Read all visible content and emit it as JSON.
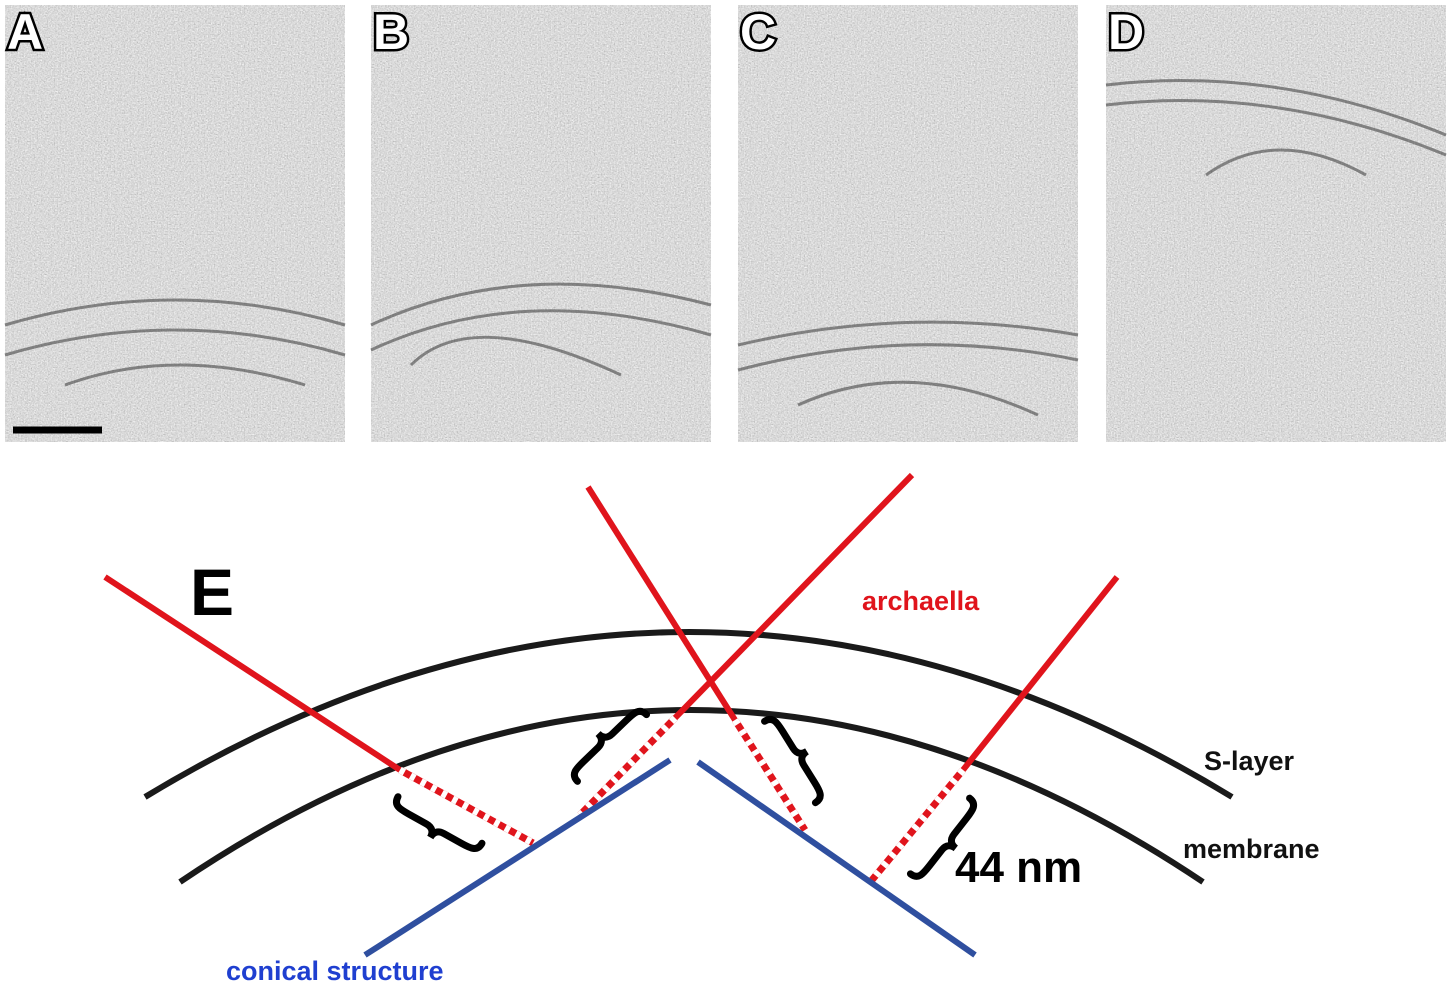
{
  "panels": [
    {
      "label": "A"
    },
    {
      "label": "B"
    },
    {
      "label": "C"
    },
    {
      "label": "D"
    }
  ],
  "diagram": {
    "label": "E",
    "archaella": "archaella",
    "s_layer": "S-layer",
    "membrane": "membrane",
    "conical_structure": "conical structure",
    "distance": "44 nm"
  }
}
